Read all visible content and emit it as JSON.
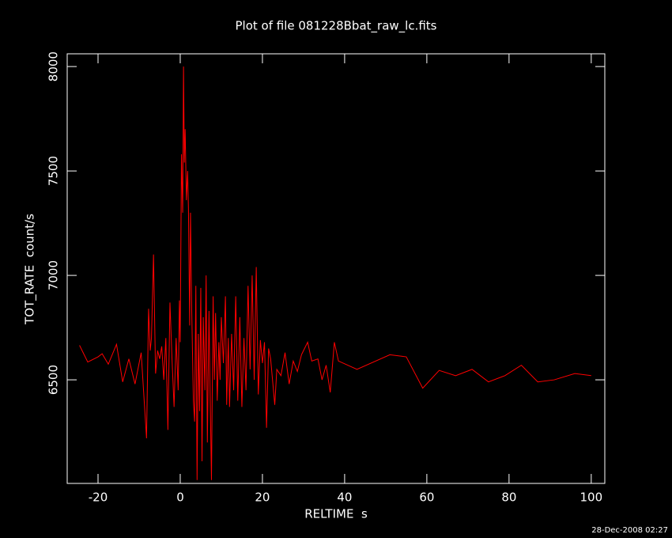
{
  "chart_data": {
    "type": "line",
    "title": "Plot of file 081228Bbat_raw_lc.fits",
    "x_label": "RELTIME  s",
    "y_label": "TOT_RATE  count/s",
    "footer": "28-Dec-2008 02:27",
    "color": "#ff0000",
    "xlim": [
      -27.5,
      103.3
    ],
    "ylim": [
      6004,
      8061
    ],
    "xticks": [
      -20,
      0,
      20,
      40,
      60,
      80,
      100
    ],
    "yticks": [
      6500,
      7000,
      7500,
      8000
    ],
    "x": [
      -24.5,
      -22.5,
      -20,
      -19,
      -17.5,
      -15.5,
      -14,
      -12.5,
      -11,
      -9.5,
      -8.2,
      -7.7,
      -7.3,
      -7,
      -6.5,
      -6,
      -5.5,
      -5,
      -4.5,
      -4,
      -3.5,
      -3,
      -2.5,
      -2,
      -1.5,
      -1,
      -0.5,
      -0.2,
      0,
      0.3,
      0.6,
      0.8,
      1,
      1.2,
      1.5,
      1.8,
      2,
      2.3,
      2.5,
      2.8,
      3.2,
      3.5,
      3.8,
      4.1,
      4.4,
      4.7,
      5,
      5.3,
      5.6,
      6,
      6.3,
      6.6,
      7,
      7.3,
      7.6,
      8,
      8.3,
      8.6,
      9,
      9.4,
      9.7,
      10,
      10.5,
      11,
      11.3,
      11.7,
      12,
      12.5,
      13,
      13.5,
      14,
      14.5,
      15,
      15.5,
      16,
      16.5,
      17,
      17.5,
      18,
      18.5,
      19,
      19.5,
      20,
      20.5,
      21,
      21.5,
      22,
      23,
      23.5,
      24.5,
      25.5,
      26.5,
      27.5,
      28.5,
      29.5,
      31,
      32,
      33.5,
      34.5,
      35.5,
      36.5,
      37.5,
      38.5,
      43,
      51,
      55,
      59,
      63,
      67,
      71,
      75,
      79,
      83,
      87,
      91,
      96,
      100
    ],
    "values": [
      6665,
      6585,
      6610,
      6625,
      6575,
      6670,
      6490,
      6600,
      6480,
      6630,
      6220,
      6840,
      6640,
      6700,
      7100,
      6530,
      6640,
      6600,
      6660,
      6500,
      6700,
      6260,
      6870,
      6600,
      6370,
      6700,
      6450,
      6880,
      6680,
      7580,
      7300,
      8000,
      7540,
      7700,
      7360,
      7500,
      7320,
      6760,
      7300,
      6830,
      6400,
      6300,
      6950,
      6020,
      6720,
      6350,
      6940,
      6110,
      6800,
      6450,
      7000,
      6200,
      6830,
      6400,
      6020,
      6900,
      6500,
      6820,
      6400,
      6680,
      6500,
      6800,
      6580,
      6900,
      6380,
      6700,
      6370,
      6720,
      6450,
      6900,
      6400,
      6800,
      6370,
      6700,
      6450,
      6950,
      6550,
      7000,
      6500,
      7040,
      6430,
      6690,
      6580,
      6680,
      6270,
      6650,
      6600,
      6380,
      6550,
      6520,
      6630,
      6480,
      6590,
      6540,
      6620,
      6680,
      6590,
      6600,
      6500,
      6570,
      6440,
      6680,
      6590,
      6550,
      6620,
      6610,
      6460,
      6545,
      6520,
      6550,
      6490,
      6520,
      6570,
      6490,
      6500,
      6530,
      6520
    ]
  }
}
